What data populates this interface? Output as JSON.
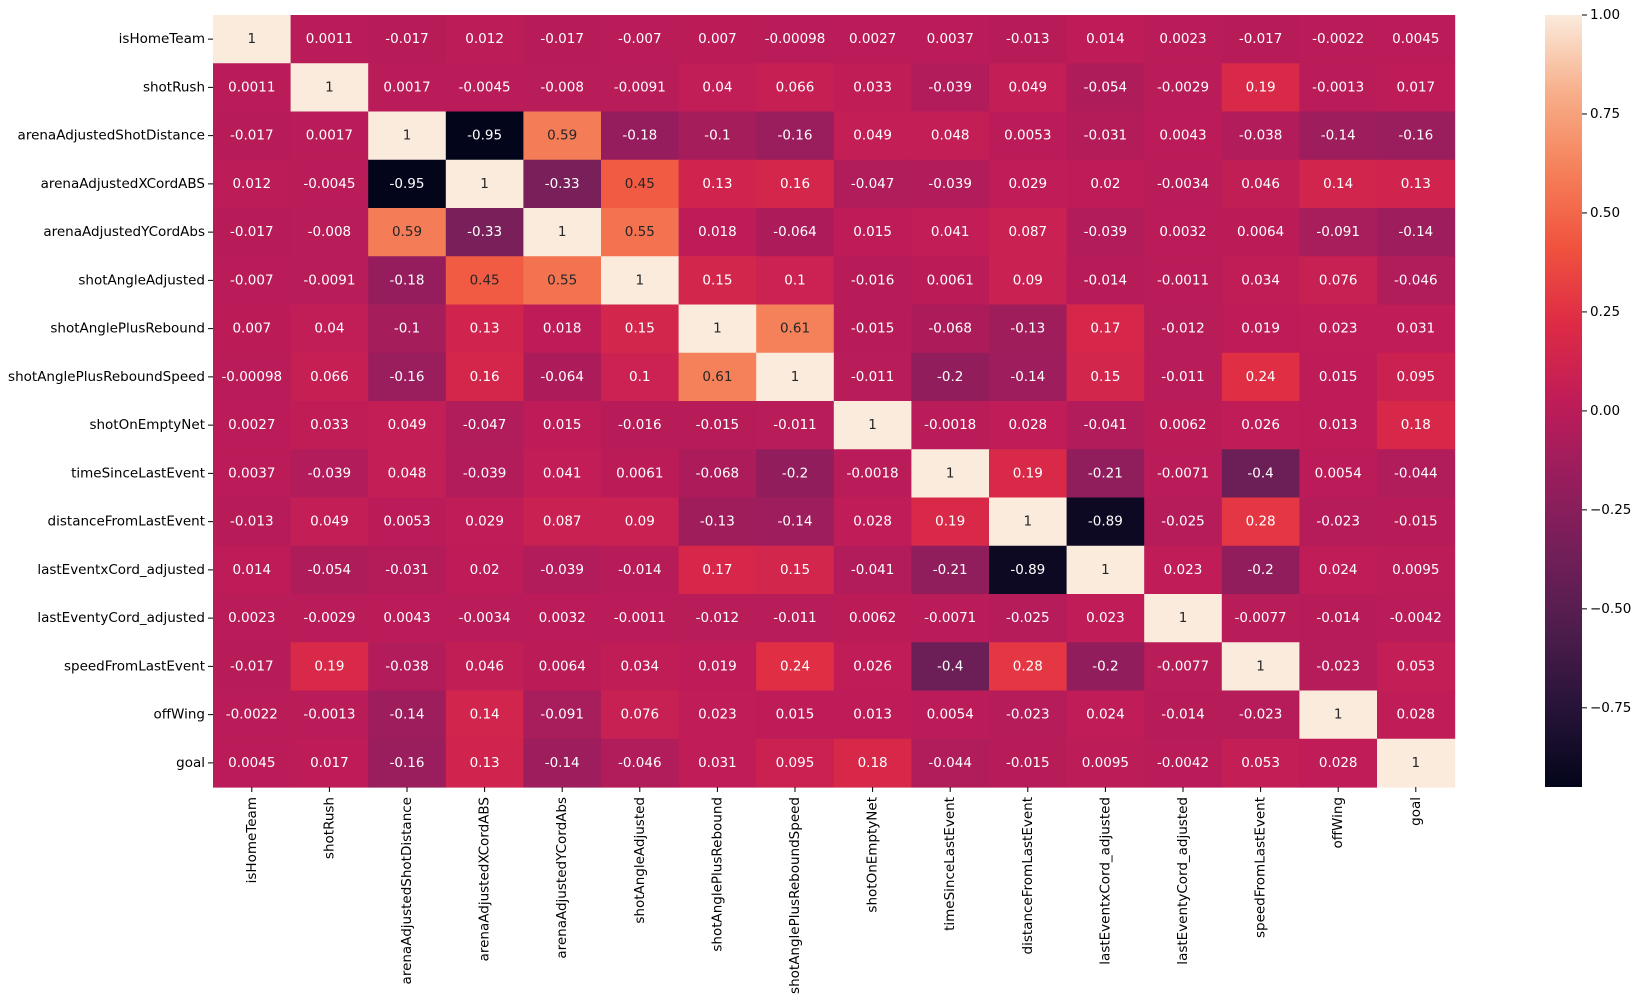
{
  "chart_data": {
    "type": "heatmap",
    "title": "",
    "colormap": "rocket",
    "vmin": -0.95,
    "vmax": 1.0,
    "labels": [
      "isHomeTeam",
      "shotRush",
      "arenaAdjustedShotDistance",
      "arenaAdjustedXCordABS",
      "arenaAdjustedYCordAbs",
      "shotAngleAdjusted",
      "shotAnglePlusRebound",
      "shotAnglePlusReboundSpeed",
      "shotOnEmptyNet",
      "timeSinceLastEvent",
      "distanceFromLastEvent",
      "lastEventxCord_adjusted",
      "lastEventyCord_adjusted",
      "speedFromLastEvent",
      "offWing",
      "goal"
    ],
    "matrix": [
      [
        "1",
        "0.0011",
        "-0.017",
        "0.012",
        "-0.017",
        "-0.007",
        "0.007",
        "-0.00098",
        "0.0027",
        "0.0037",
        "-0.013",
        "0.014",
        "0.0023",
        "-0.017",
        "-0.0022",
        "0.0045"
      ],
      [
        "0.0011",
        "1",
        "0.0017",
        "-0.0045",
        "-0.008",
        "-0.0091",
        "0.04",
        "0.066",
        "0.033",
        "-0.039",
        "0.049",
        "-0.054",
        "-0.0029",
        "0.19",
        "-0.0013",
        "0.017"
      ],
      [
        "-0.017",
        "0.0017",
        "1",
        "-0.95",
        "0.59",
        "-0.18",
        "-0.1",
        "-0.16",
        "0.049",
        "0.048",
        "0.0053",
        "-0.031",
        "0.0043",
        "-0.038",
        "-0.14",
        "-0.16"
      ],
      [
        "0.012",
        "-0.0045",
        "-0.95",
        "1",
        "-0.33",
        "0.45",
        "0.13",
        "0.16",
        "-0.047",
        "-0.039",
        "0.029",
        "0.02",
        "-0.0034",
        "0.046",
        "0.14",
        "0.13"
      ],
      [
        "-0.017",
        "-0.008",
        "0.59",
        "-0.33",
        "1",
        "0.55",
        "0.018",
        "-0.064",
        "0.015",
        "0.041",
        "0.087",
        "-0.039",
        "0.0032",
        "0.0064",
        "-0.091",
        "-0.14"
      ],
      [
        "-0.007",
        "-0.0091",
        "-0.18",
        "0.45",
        "0.55",
        "1",
        "0.15",
        "0.1",
        "-0.016",
        "0.0061",
        "0.09",
        "-0.014",
        "-0.0011",
        "0.034",
        "0.076",
        "-0.046"
      ],
      [
        "0.007",
        "0.04",
        "-0.1",
        "0.13",
        "0.018",
        "0.15",
        "1",
        "0.61",
        "-0.015",
        "-0.068",
        "-0.13",
        "0.17",
        "-0.012",
        "0.019",
        "0.023",
        "0.031"
      ],
      [
        "-0.00098",
        "0.066",
        "-0.16",
        "0.16",
        "-0.064",
        "0.1",
        "0.61",
        "1",
        "-0.011",
        "-0.2",
        "-0.14",
        "0.15",
        "-0.011",
        "0.24",
        "0.015",
        "0.095"
      ],
      [
        "0.0027",
        "0.033",
        "0.049",
        "-0.047",
        "0.015",
        "-0.016",
        "-0.015",
        "-0.011",
        "1",
        "-0.0018",
        "0.028",
        "-0.041",
        "0.0062",
        "0.026",
        "0.013",
        "0.18"
      ],
      [
        "0.0037",
        "-0.039",
        "0.048",
        "-0.039",
        "0.041",
        "0.0061",
        "-0.068",
        "-0.2",
        "-0.0018",
        "1",
        "0.19",
        "-0.21",
        "-0.0071",
        "-0.4",
        "0.0054",
        "-0.044"
      ],
      [
        "-0.013",
        "0.049",
        "0.0053",
        "0.029",
        "0.087",
        "0.09",
        "-0.13",
        "-0.14",
        "0.028",
        "0.19",
        "1",
        "-0.89",
        "-0.025",
        "0.28",
        "-0.023",
        "-0.015"
      ],
      [
        "0.014",
        "-0.054",
        "-0.031",
        "0.02",
        "-0.039",
        "-0.014",
        "0.17",
        "0.15",
        "-0.041",
        "-0.21",
        "-0.89",
        "1",
        "0.023",
        "-0.2",
        "0.024",
        "0.0095"
      ],
      [
        "0.0023",
        "-0.0029",
        "0.0043",
        "-0.0034",
        "0.0032",
        "-0.0011",
        "-0.012",
        "-0.011",
        "0.0062",
        "-0.0071",
        "-0.025",
        "0.023",
        "1",
        "-0.0077",
        "-0.014",
        "-0.0042"
      ],
      [
        "-0.017",
        "0.19",
        "-0.038",
        "0.046",
        "0.0064",
        "0.034",
        "0.019",
        "0.24",
        "0.026",
        "-0.4",
        "0.28",
        "-0.2",
        "-0.0077",
        "1",
        "-0.023",
        "0.053"
      ],
      [
        "-0.0022",
        "-0.0013",
        "-0.14",
        "0.14",
        "-0.091",
        "0.076",
        "0.023",
        "0.015",
        "0.013",
        "0.0054",
        "-0.023",
        "0.024",
        "-0.014",
        "-0.023",
        "1",
        "0.028"
      ],
      [
        "0.0045",
        "0.017",
        "-0.16",
        "0.13",
        "-0.14",
        "-0.046",
        "0.031",
        "0.095",
        "0.18",
        "-0.044",
        "-0.015",
        "0.0095",
        "-0.0042",
        "0.053",
        "0.028",
        "1"
      ]
    ],
    "colorbar_ticks": [
      "1.00",
      "0.75",
      "0.50",
      "0.25",
      "0.00",
      "−0.25",
      "−0.50",
      "−0.75"
    ],
    "colorbar_tick_values": [
      1.0,
      0.75,
      0.5,
      0.25,
      0.0,
      -0.25,
      -0.5,
      -0.75
    ]
  }
}
